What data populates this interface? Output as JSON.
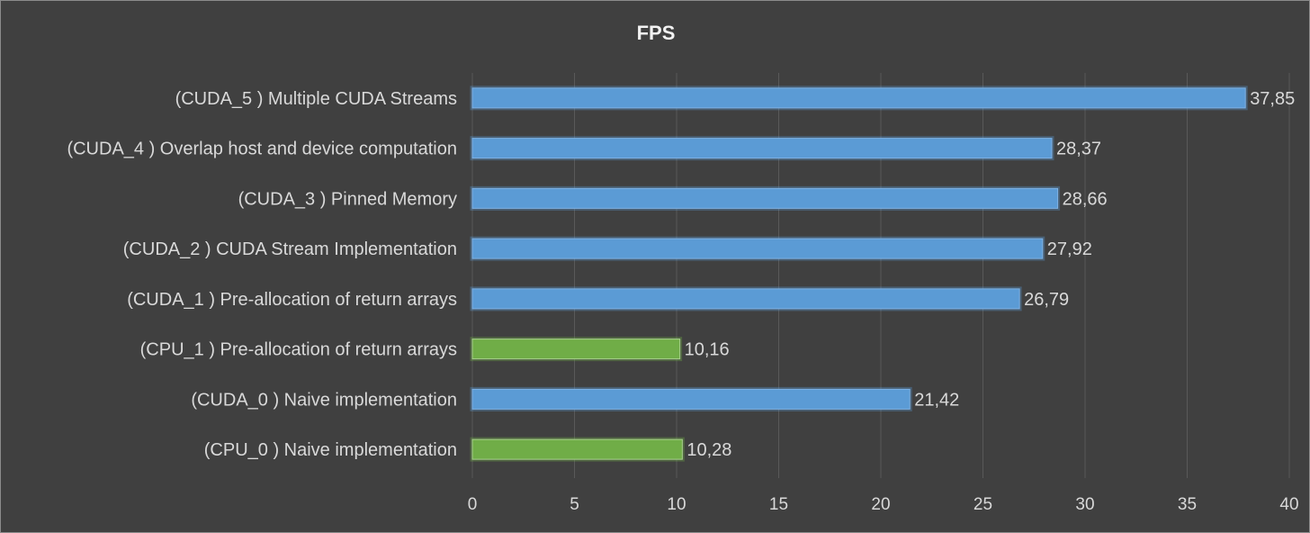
{
  "chart_data": {
    "type": "bar",
    "orientation": "horizontal",
    "title": "FPS",
    "xlabel": "",
    "ylabel": "",
    "xlim": [
      0,
      40
    ],
    "x_ticks": [
      0,
      5,
      10,
      15,
      20,
      25,
      30,
      35,
      40
    ],
    "grid": true,
    "legend": "none",
    "categories": [
      "(CUDA_5 ) Multiple CUDA Streams",
      "(CUDA_4 ) Overlap host and device computation",
      "(CUDA_3 ) Pinned Memory",
      "(CUDA_2 ) CUDA Stream Implementation",
      "(CUDA_1 ) Pre-allocation of return arrays",
      "(CPU_1 ) Pre-allocation of return arrays",
      "(CUDA_0 ) Naive implementation",
      "(CPU_0 ) Naive implementation"
    ],
    "values": [
      37.85,
      28.37,
      28.66,
      27.92,
      26.79,
      10.16,
      21.42,
      10.28
    ],
    "value_labels": [
      "37,85",
      "28,37",
      "28,66",
      "27,92",
      "26,79",
      "10,16",
      "21,42",
      "10,28"
    ],
    "bar_colors": [
      "#5b9bd5",
      "#5b9bd5",
      "#5b9bd5",
      "#5b9bd5",
      "#5b9bd5",
      "#70ad47",
      "#5b9bd5",
      "#70ad47"
    ]
  },
  "colors": {
    "background": "#404040",
    "gridline": "#595959",
    "text": "#d9d9d9",
    "title": "#f2f2f2",
    "cuda_bar": "#5b9bd5",
    "cpu_bar": "#70ad47"
  }
}
